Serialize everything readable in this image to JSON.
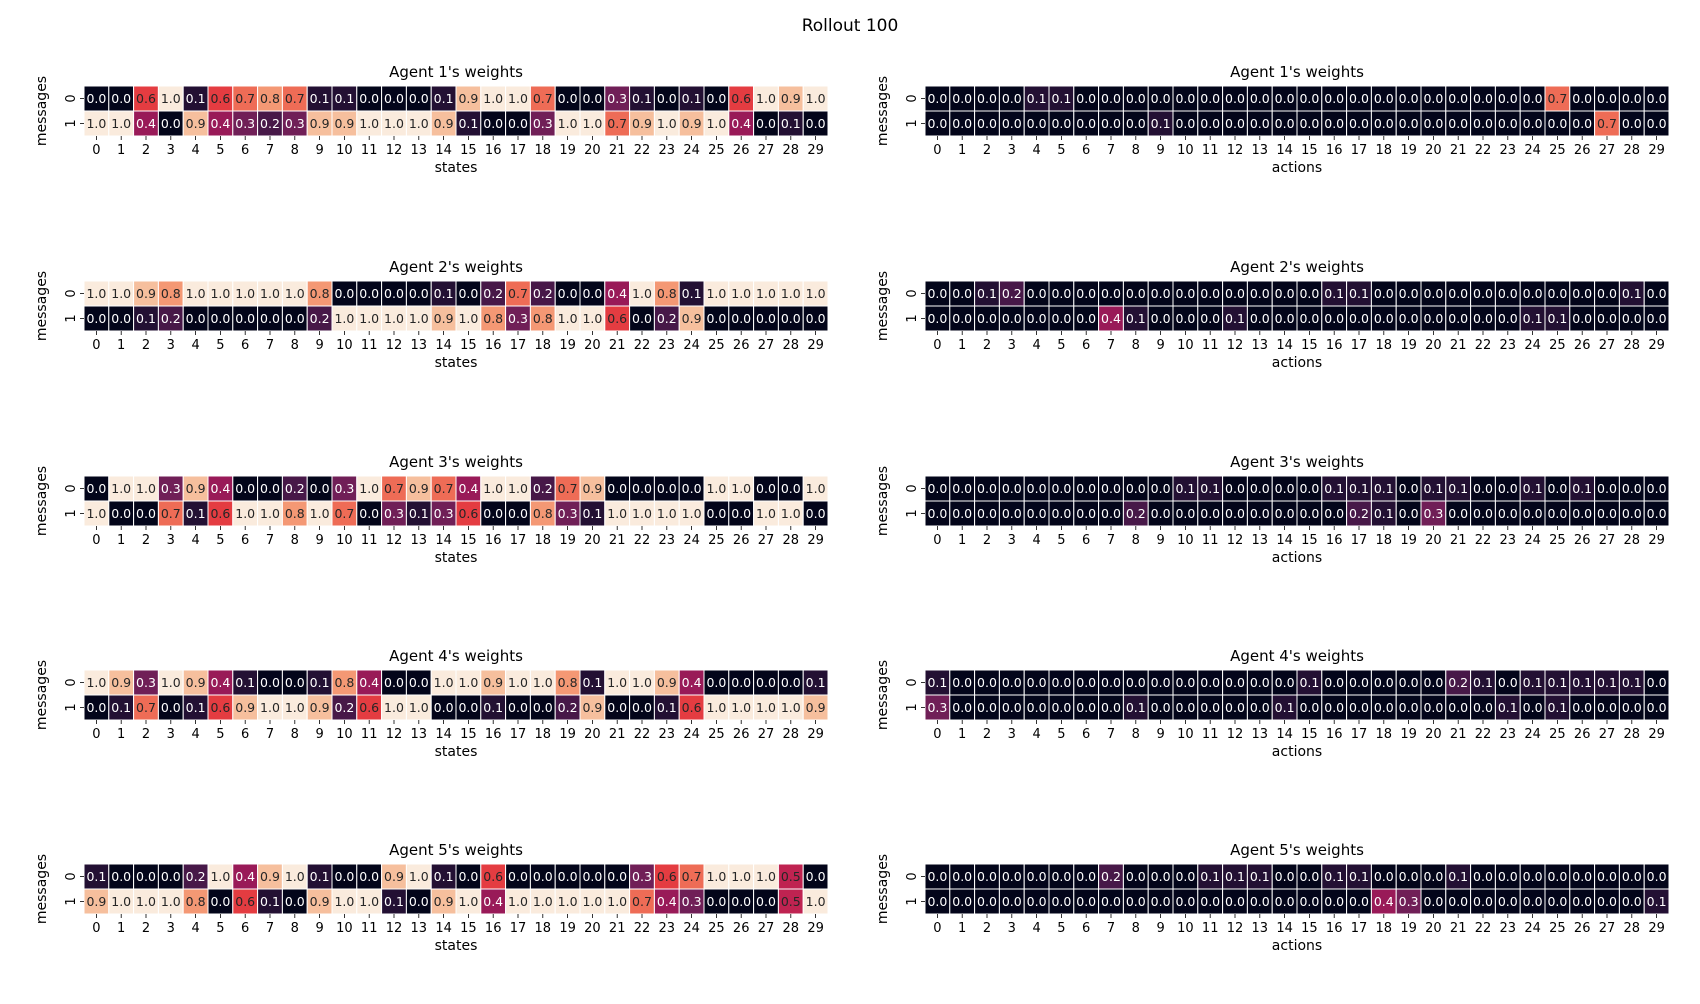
{
  "figure": {
    "title": "Rollout 100"
  },
  "chart_data": [
    {
      "type": "heatmap",
      "title": "Agent 1's weights",
      "xlabel": "states",
      "ylabel": "messages",
      "categories_x": [
        0,
        1,
        2,
        3,
        4,
        5,
        6,
        7,
        8,
        9,
        10,
        11,
        12,
        13,
        14,
        15,
        16,
        17,
        18,
        19,
        20,
        21,
        22,
        23,
        24,
        25,
        26,
        27,
        28,
        29
      ],
      "categories_y": [
        0,
        1
      ],
      "values": [
        [
          0.0,
          0.0,
          0.6,
          1.0,
          0.1,
          0.6,
          0.7,
          0.8,
          0.7,
          0.1,
          0.1,
          0.0,
          0.0,
          0.0,
          0.1,
          0.9,
          1.0,
          1.0,
          0.7,
          0.0,
          0.0,
          0.3,
          0.1,
          0.0,
          0.1,
          0.0,
          0.6,
          1.0,
          0.9,
          1.0
        ],
        [
          1.0,
          1.0,
          0.4,
          0.0,
          0.9,
          0.4,
          0.3,
          0.2,
          0.3,
          0.9,
          0.9,
          1.0,
          1.0,
          1.0,
          0.9,
          0.1,
          0.0,
          0.0,
          0.3,
          1.0,
          1.0,
          0.7,
          0.9,
          1.0,
          0.9,
          1.0,
          0.4,
          0.0,
          0.1,
          0.0
        ]
      ]
    },
    {
      "type": "heatmap",
      "title": "Agent 1's weights",
      "xlabel": "actions",
      "ylabel": "messages",
      "categories_x": [
        0,
        1,
        2,
        3,
        4,
        5,
        6,
        7,
        8,
        9,
        10,
        11,
        12,
        13,
        14,
        15,
        16,
        17,
        18,
        19,
        20,
        21,
        22,
        23,
        24,
        25,
        26,
        27,
        28,
        29
      ],
      "categories_y": [
        0,
        1
      ],
      "values": [
        [
          0.0,
          0.0,
          0.0,
          0.0,
          0.1,
          0.1,
          0.0,
          0.0,
          0.0,
          0.0,
          0.0,
          0.0,
          0.0,
          0.0,
          0.0,
          0.0,
          0.0,
          0.0,
          0.0,
          0.0,
          0.0,
          0.0,
          0.0,
          0.0,
          0.0,
          0.7,
          0.0,
          0.0,
          0.0,
          0.0
        ],
        [
          0.0,
          0.0,
          0.0,
          0.0,
          0.0,
          0.0,
          0.0,
          0.0,
          0.0,
          0.1,
          0.0,
          0.0,
          0.0,
          0.0,
          0.0,
          0.0,
          0.0,
          0.0,
          0.0,
          0.0,
          0.0,
          0.0,
          0.0,
          0.0,
          0.0,
          0.0,
          0.0,
          0.7,
          0.0,
          0.0
        ]
      ]
    },
    {
      "type": "heatmap",
      "title": "Agent 2's weights",
      "xlabel": "states",
      "ylabel": "messages",
      "categories_x": [
        0,
        1,
        2,
        3,
        4,
        5,
        6,
        7,
        8,
        9,
        10,
        11,
        12,
        13,
        14,
        15,
        16,
        17,
        18,
        19,
        20,
        21,
        22,
        23,
        24,
        25,
        26,
        27,
        28,
        29
      ],
      "categories_y": [
        0,
        1
      ],
      "values": [
        [
          1.0,
          1.0,
          0.9,
          0.8,
          1.0,
          1.0,
          1.0,
          1.0,
          1.0,
          0.8,
          0.0,
          0.0,
          0.0,
          0.0,
          0.1,
          0.0,
          0.2,
          0.7,
          0.2,
          0.0,
          0.0,
          0.4,
          1.0,
          0.8,
          0.1,
          1.0,
          1.0,
          1.0,
          1.0,
          1.0
        ],
        [
          0.0,
          0.0,
          0.1,
          0.2,
          0.0,
          0.0,
          0.0,
          0.0,
          0.0,
          0.2,
          1.0,
          1.0,
          1.0,
          1.0,
          0.9,
          1.0,
          0.8,
          0.3,
          0.8,
          1.0,
          1.0,
          0.6,
          0.0,
          0.2,
          0.9,
          0.0,
          0.0,
          0.0,
          0.0,
          0.0
        ]
      ]
    },
    {
      "type": "heatmap",
      "title": "Agent 2's weights",
      "xlabel": "actions",
      "ylabel": "messages",
      "categories_x": [
        0,
        1,
        2,
        3,
        4,
        5,
        6,
        7,
        8,
        9,
        10,
        11,
        12,
        13,
        14,
        15,
        16,
        17,
        18,
        19,
        20,
        21,
        22,
        23,
        24,
        25,
        26,
        27,
        28,
        29
      ],
      "categories_y": [
        0,
        1
      ],
      "values": [
        [
          0.0,
          0.0,
          0.1,
          0.2,
          0.0,
          0.0,
          0.0,
          0.0,
          0.0,
          0.0,
          0.0,
          0.0,
          0.0,
          0.0,
          0.0,
          0.0,
          0.1,
          0.1,
          0.0,
          0.0,
          0.0,
          0.0,
          0.0,
          0.0,
          0.0,
          0.0,
          0.0,
          0.0,
          0.1,
          0.0
        ],
        [
          0.0,
          0.0,
          0.0,
          0.0,
          0.0,
          0.0,
          0.0,
          0.4,
          0.1,
          0.0,
          0.0,
          0.0,
          0.1,
          0.0,
          0.0,
          0.0,
          0.0,
          0.0,
          0.0,
          0.0,
          0.0,
          0.0,
          0.0,
          0.0,
          0.1,
          0.1,
          0.0,
          0.0,
          0.0,
          0.0
        ]
      ]
    },
    {
      "type": "heatmap",
      "title": "Agent 3's weights",
      "xlabel": "states",
      "ylabel": "messages",
      "categories_x": [
        0,
        1,
        2,
        3,
        4,
        5,
        6,
        7,
        8,
        9,
        10,
        11,
        12,
        13,
        14,
        15,
        16,
        17,
        18,
        19,
        20,
        21,
        22,
        23,
        24,
        25,
        26,
        27,
        28,
        29
      ],
      "categories_y": [
        0,
        1
      ],
      "values": [
        [
          0.0,
          1.0,
          1.0,
          0.3,
          0.9,
          0.4,
          0.0,
          0.0,
          0.2,
          0.0,
          0.3,
          1.0,
          0.7,
          0.9,
          0.7,
          0.4,
          1.0,
          1.0,
          0.2,
          0.7,
          0.9,
          0.0,
          0.0,
          0.0,
          0.0,
          1.0,
          1.0,
          0.0,
          0.0,
          1.0
        ],
        [
          1.0,
          0.0,
          0.0,
          0.7,
          0.1,
          0.6,
          1.0,
          1.0,
          0.8,
          1.0,
          0.7,
          0.0,
          0.3,
          0.1,
          0.3,
          0.6,
          0.0,
          0.0,
          0.8,
          0.3,
          0.1,
          1.0,
          1.0,
          1.0,
          1.0,
          0.0,
          0.0,
          1.0,
          1.0,
          0.0
        ]
      ]
    },
    {
      "type": "heatmap",
      "title": "Agent 3's weights",
      "xlabel": "actions",
      "ylabel": "messages",
      "categories_x": [
        0,
        1,
        2,
        3,
        4,
        5,
        6,
        7,
        8,
        9,
        10,
        11,
        12,
        13,
        14,
        15,
        16,
        17,
        18,
        19,
        20,
        21,
        22,
        23,
        24,
        25,
        26,
        27,
        28,
        29
      ],
      "categories_y": [
        0,
        1
      ],
      "values": [
        [
          0.0,
          0.0,
          0.0,
          0.0,
          0.0,
          0.0,
          0.0,
          0.0,
          0.0,
          0.0,
          0.1,
          0.1,
          0.0,
          0.0,
          0.0,
          0.0,
          0.1,
          0.1,
          0.1,
          0.0,
          0.1,
          0.1,
          0.0,
          0.0,
          0.1,
          0.0,
          0.1,
          0.0,
          0.0,
          0.0
        ],
        [
          0.0,
          0.0,
          0.0,
          0.0,
          0.0,
          0.0,
          0.0,
          0.0,
          0.2,
          0.0,
          0.0,
          0.0,
          0.0,
          0.0,
          0.0,
          0.0,
          0.0,
          0.2,
          0.1,
          0.0,
          0.3,
          0.0,
          0.0,
          0.0,
          0.0,
          0.0,
          0.0,
          0.0,
          0.0,
          0.0
        ]
      ]
    },
    {
      "type": "heatmap",
      "title": "Agent 4's weights",
      "xlabel": "states",
      "ylabel": "messages",
      "categories_x": [
        0,
        1,
        2,
        3,
        4,
        5,
        6,
        7,
        8,
        9,
        10,
        11,
        12,
        13,
        14,
        15,
        16,
        17,
        18,
        19,
        20,
        21,
        22,
        23,
        24,
        25,
        26,
        27,
        28,
        29
      ],
      "categories_y": [
        0,
        1
      ],
      "values": [
        [
          1.0,
          0.9,
          0.3,
          1.0,
          0.9,
          0.4,
          0.1,
          0.0,
          0.0,
          0.1,
          0.8,
          0.4,
          0.0,
          0.0,
          1.0,
          1.0,
          0.9,
          1.0,
          1.0,
          0.8,
          0.1,
          1.0,
          1.0,
          0.9,
          0.4,
          0.0,
          0.0,
          0.0,
          0.0,
          0.1
        ],
        [
          0.0,
          0.1,
          0.7,
          0.0,
          0.1,
          0.6,
          0.9,
          1.0,
          1.0,
          0.9,
          0.2,
          0.6,
          1.0,
          1.0,
          0.0,
          0.0,
          0.1,
          0.0,
          0.0,
          0.2,
          0.9,
          0.0,
          0.0,
          0.1,
          0.6,
          1.0,
          1.0,
          1.0,
          1.0,
          0.9
        ]
      ]
    },
    {
      "type": "heatmap",
      "title": "Agent 4's weights",
      "xlabel": "actions",
      "ylabel": "messages",
      "categories_x": [
        0,
        1,
        2,
        3,
        4,
        5,
        6,
        7,
        8,
        9,
        10,
        11,
        12,
        13,
        14,
        15,
        16,
        17,
        18,
        19,
        20,
        21,
        22,
        23,
        24,
        25,
        26,
        27,
        28,
        29
      ],
      "categories_y": [
        0,
        1
      ],
      "values": [
        [
          0.1,
          0.0,
          0.0,
          0.0,
          0.0,
          0.0,
          0.0,
          0.0,
          0.0,
          0.0,
          0.0,
          0.0,
          0.0,
          0.0,
          0.0,
          0.1,
          0.0,
          0.0,
          0.0,
          0.0,
          0.0,
          0.2,
          0.1,
          0.0,
          0.1,
          0.1,
          0.1,
          0.1,
          0.1,
          0.0
        ],
        [
          0.3,
          0.0,
          0.0,
          0.0,
          0.0,
          0.0,
          0.0,
          0.0,
          0.1,
          0.0,
          0.0,
          0.0,
          0.0,
          0.0,
          0.1,
          0.0,
          0.0,
          0.0,
          0.0,
          0.0,
          0.0,
          0.0,
          0.0,
          0.1,
          0.0,
          0.1,
          0.0,
          0.0,
          0.0,
          0.0
        ]
      ]
    },
    {
      "type": "heatmap",
      "title": "Agent 5's weights",
      "xlabel": "states",
      "ylabel": "messages",
      "categories_x": [
        0,
        1,
        2,
        3,
        4,
        5,
        6,
        7,
        8,
        9,
        10,
        11,
        12,
        13,
        14,
        15,
        16,
        17,
        18,
        19,
        20,
        21,
        22,
        23,
        24,
        25,
        26,
        27,
        28,
        29
      ],
      "categories_y": [
        0,
        1
      ],
      "values": [
        [
          0.1,
          0.0,
          0.0,
          0.0,
          0.2,
          1.0,
          0.4,
          0.9,
          1.0,
          0.1,
          0.0,
          0.0,
          0.9,
          1.0,
          0.1,
          0.0,
          0.6,
          0.0,
          0.0,
          0.0,
          0.0,
          0.0,
          0.3,
          0.6,
          0.7,
          1.0,
          1.0,
          1.0,
          0.5,
          0.0
        ],
        [
          0.9,
          1.0,
          1.0,
          1.0,
          0.8,
          0.0,
          0.6,
          0.1,
          0.0,
          0.9,
          1.0,
          1.0,
          0.1,
          0.0,
          0.9,
          1.0,
          0.4,
          1.0,
          1.0,
          1.0,
          1.0,
          1.0,
          0.7,
          0.4,
          0.3,
          0.0,
          0.0,
          0.0,
          0.5,
          1.0
        ]
      ]
    },
    {
      "type": "heatmap",
      "title": "Agent 5's weights",
      "xlabel": "actions",
      "ylabel": "messages",
      "categories_x": [
        0,
        1,
        2,
        3,
        4,
        5,
        6,
        7,
        8,
        9,
        10,
        11,
        12,
        13,
        14,
        15,
        16,
        17,
        18,
        19,
        20,
        21,
        22,
        23,
        24,
        25,
        26,
        27,
        28,
        29
      ],
      "categories_y": [
        0,
        1
      ],
      "values": [
        [
          0.0,
          0.0,
          0.0,
          0.0,
          0.0,
          0.0,
          0.0,
          0.2,
          0.0,
          0.0,
          0.0,
          0.1,
          0.1,
          0.1,
          0.0,
          0.0,
          0.1,
          0.1,
          0.0,
          0.0,
          0.0,
          0.1,
          0.0,
          0.0,
          0.0,
          0.0,
          0.0,
          0.0,
          0.0,
          0.0
        ],
        [
          0.0,
          0.0,
          0.0,
          0.0,
          0.0,
          0.0,
          0.0,
          0.0,
          0.0,
          0.0,
          0.0,
          0.0,
          0.0,
          0.0,
          0.0,
          0.0,
          0.0,
          0.0,
          0.4,
          0.3,
          0.0,
          0.0,
          0.0,
          0.0,
          0.0,
          0.0,
          0.0,
          0.0,
          0.0,
          0.1
        ]
      ]
    }
  ]
}
